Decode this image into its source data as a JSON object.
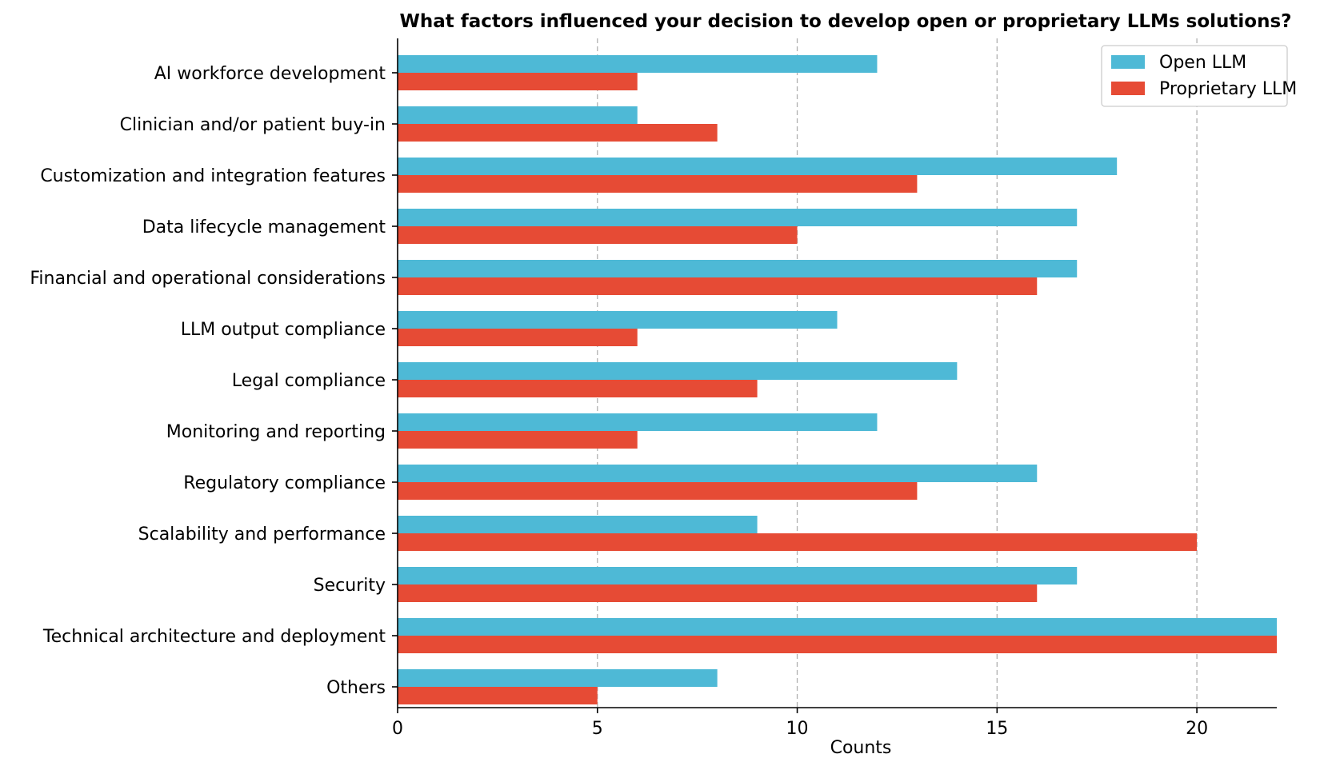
{
  "chart_data": {
    "type": "bar",
    "orientation": "horizontal",
    "title": "What factors influenced your decision to develop open or proprietary LLMs solutions?",
    "xlabel": "Counts",
    "ylabel": "",
    "xlim": [
      0,
      22.5
    ],
    "xticks": [
      0,
      5,
      10,
      15,
      20
    ],
    "grid": "x dashed",
    "legend_position": "top-right",
    "categories": [
      "AI workforce development",
      "Clinician and/or patient buy-in",
      "Customization and integration features",
      "Data lifecycle management",
      "Financial and operational considerations",
      "LLM output compliance",
      "Legal compliance",
      "Monitoring and reporting",
      "Regulatory compliance",
      "Scalability and performance",
      "Security",
      "Technical architecture and deployment",
      "Others"
    ],
    "series": [
      {
        "name": "Open LLM",
        "color": "#4eb9d6",
        "values": [
          12,
          6,
          18,
          17,
          17,
          11,
          14,
          12,
          16,
          9,
          17,
          22,
          8
        ]
      },
      {
        "name": "Proprietary LLM",
        "color": "#e64b35",
        "values": [
          6,
          8,
          13,
          10,
          16,
          6,
          9,
          6,
          13,
          20,
          16,
          22,
          5
        ]
      }
    ]
  }
}
